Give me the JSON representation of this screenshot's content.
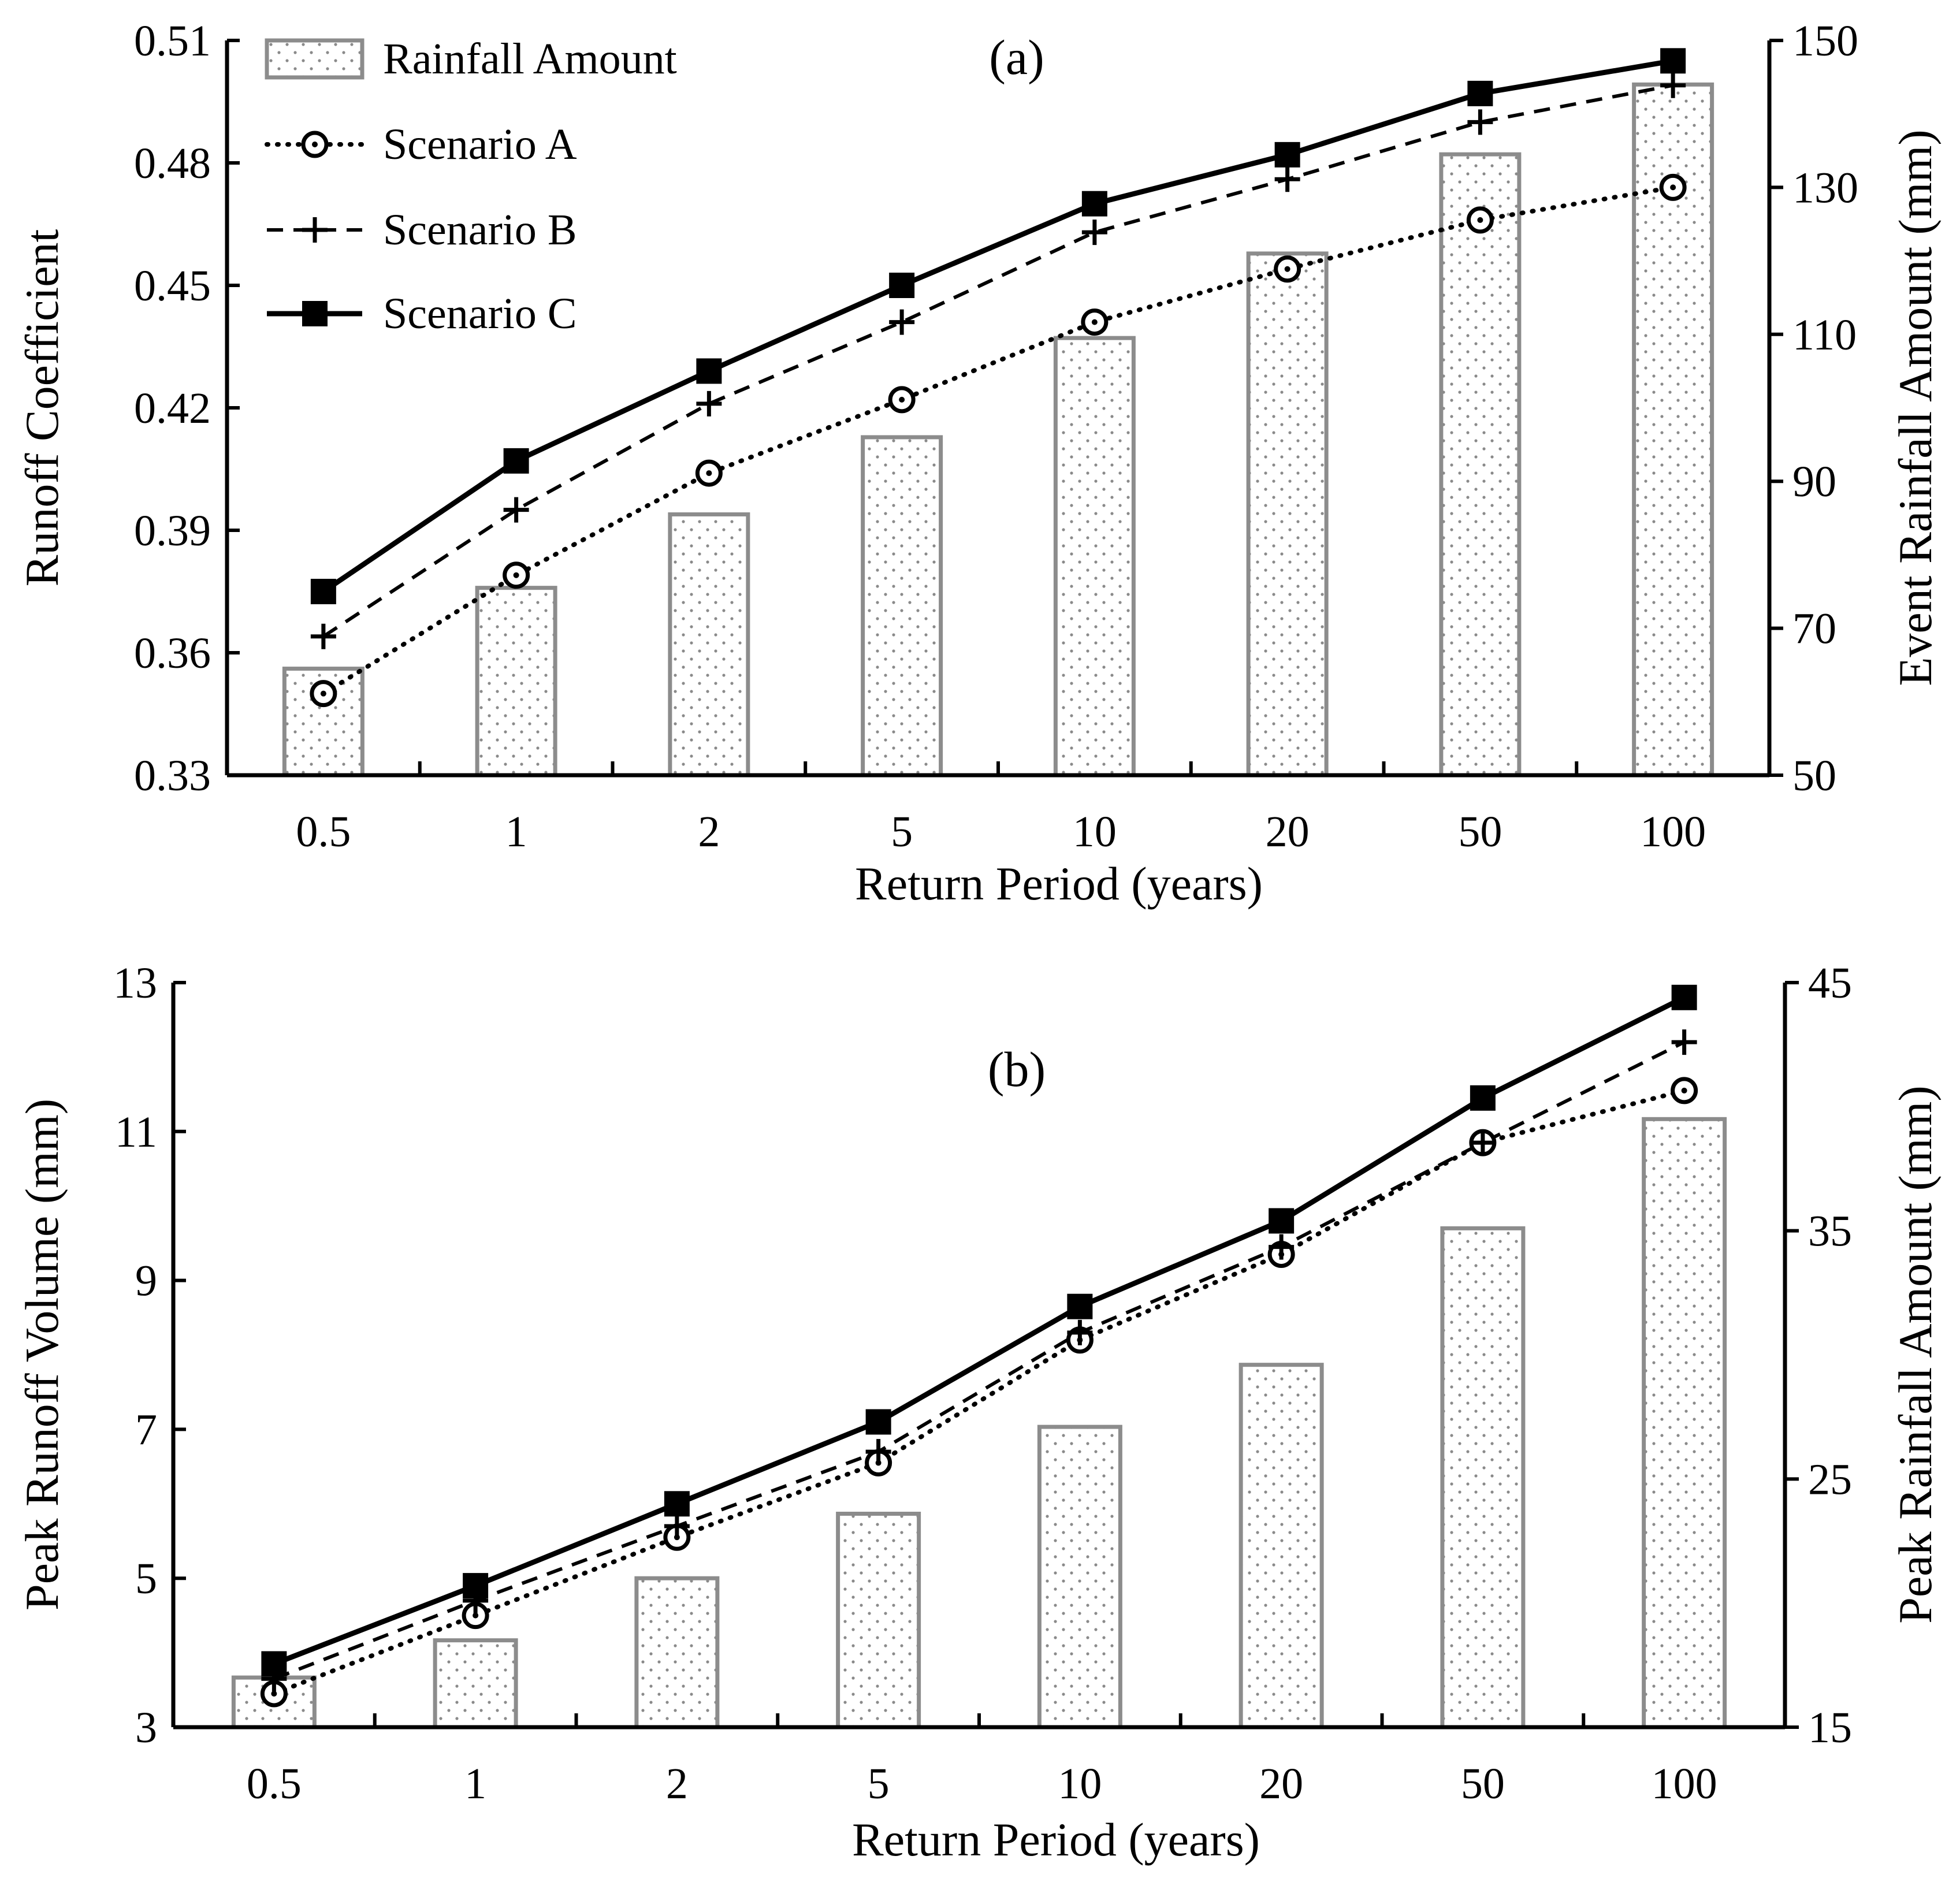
{
  "chart_data": [
    {
      "type": "bar+line",
      "title": "(a)",
      "xlabel": "Return Period (years)",
      "ylabel_left": "Runoff Coefficient",
      "ylabel_right": "Event Rainfall Amount (mm)",
      "categories": [
        "0.5",
        "1",
        "2",
        "5",
        "10",
        "20",
        "50",
        "100"
      ],
      "ylim_left": [
        0.33,
        0.51
      ],
      "yticks_left": [
        "0.33",
        "0.36",
        "0.39",
        "0.42",
        "0.45",
        "0.48",
        "0.51"
      ],
      "ylim_right": [
        50,
        150
      ],
      "yticks_right": [
        "50",
        "70",
        "90",
        "110",
        "130",
        "150"
      ],
      "bars": {
        "name": "Rainfall Amount",
        "axis": "right",
        "values": [
          64.5,
          75.5,
          85.5,
          96,
          109.5,
          121,
          134.5,
          144
        ]
      },
      "series": [
        {
          "name": "Scenario A",
          "axis": "left",
          "values": [
            0.35,
            0.379,
            0.404,
            0.422,
            0.441,
            0.454,
            0.466,
            0.474
          ]
        },
        {
          "name": "Scenario B",
          "axis": "left",
          "values": [
            0.364,
            0.395,
            0.421,
            0.441,
            0.463,
            0.476,
            0.49,
            0.499
          ]
        },
        {
          "name": "Scenario C",
          "axis": "left",
          "values": [
            0.375,
            0.407,
            0.429,
            0.45,
            0.47,
            0.482,
            0.497,
            0.505
          ]
        }
      ],
      "legend": [
        "Rainfall Amount",
        "Scenario A",
        "Scenario B",
        "Scenario C"
      ]
    },
    {
      "type": "bar+line",
      "title": "(b)",
      "xlabel": "Return Period (years)",
      "ylabel_left": "Peak Runoff Volume (mm)",
      "ylabel_right": "Peak Rainfall Amount (mm)",
      "categories": [
        "0.5",
        "1",
        "2",
        "5",
        "10",
        "20",
        "50",
        "100"
      ],
      "ylim_left": [
        3,
        13
      ],
      "yticks_left": [
        "3",
        "5",
        "7",
        "9",
        "11",
        "13"
      ],
      "ylim_right": [
        15,
        45
      ],
      "yticks_right": [
        "15",
        "25",
        "35",
        "45"
      ],
      "bars": {
        "name": "Rainfall Amount",
        "axis": "right",
        "values": [
          17.0,
          18.5,
          21.0,
          23.6,
          27.1,
          29.6,
          35.1,
          39.5
        ]
      },
      "series": [
        {
          "name": "Scenario A",
          "axis": "left",
          "values": [
            3.45,
            4.5,
            5.55,
            6.55,
            8.2,
            9.35,
            10.85,
            11.55
          ]
        },
        {
          "name": "Scenario B",
          "axis": "left",
          "values": [
            3.65,
            4.7,
            5.7,
            6.7,
            8.3,
            9.45,
            10.85,
            12.2
          ]
        },
        {
          "name": "Scenario C",
          "axis": "left",
          "values": [
            3.85,
            4.9,
            6.0,
            7.1,
            8.65,
            9.8,
            11.45,
            12.8
          ]
        }
      ]
    }
  ]
}
